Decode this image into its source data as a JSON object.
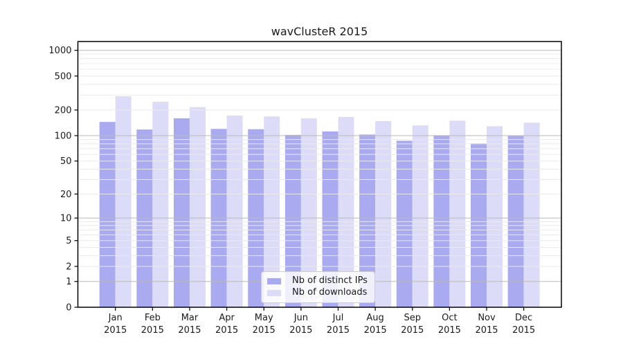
{
  "page": {
    "background": "#ffffff"
  },
  "chart_data": {
    "type": "bar",
    "title": "wavClusteR 2015",
    "categories": [
      "Jan 2015",
      "Feb 2015",
      "Mar 2015",
      "Apr 2015",
      "May 2015",
      "Jun 2015",
      "Jul 2015",
      "Aug 2015",
      "Sep 2015",
      "Oct 2015",
      "Nov 2015",
      "Dec 2015"
    ],
    "series": [
      {
        "name": "Nb of distinct IPs",
        "color": "#aaaaf0",
        "values": [
          145,
          118,
          160,
          120,
          119,
          102,
          112,
          103,
          87,
          101,
          81,
          100
        ]
      },
      {
        "name": "Nb of downloads",
        "color": "#dcdcf8",
        "values": [
          290,
          250,
          216,
          172,
          168,
          160,
          166,
          148,
          132,
          150,
          129,
          142
        ]
      }
    ],
    "y_scale": "log1p",
    "y_axis_ticks": [
      1000,
      500,
      200,
      100,
      50,
      20,
      10,
      5,
      2,
      1,
      0
    ],
    "y_major_gridlines": [
      1,
      10,
      100,
      1000
    ],
    "ylim": [
      0,
      1270
    ],
    "grid": "on",
    "legend_position": "lower center",
    "colors": {
      "axis": "#000000",
      "text": "#1a1a1a",
      "grid_minor": "#eaeaea",
      "grid_major": "#b9b9b9",
      "legend_border": "#cccccc"
    }
  }
}
